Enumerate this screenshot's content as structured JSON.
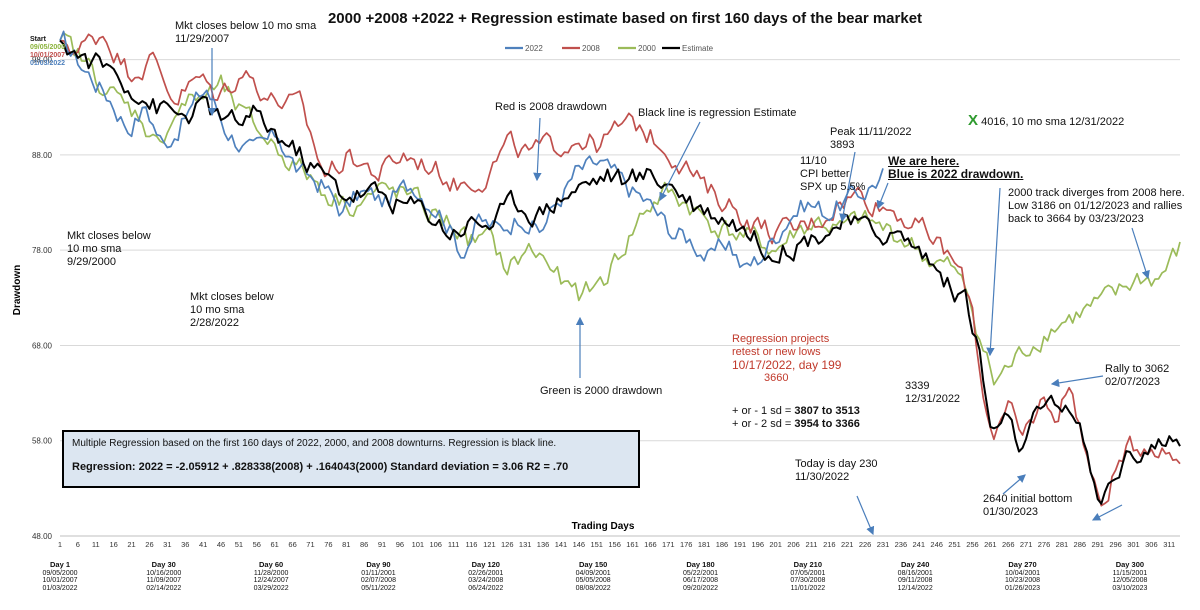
{
  "title": "2000 +2008 +2022 + Regression estimate based on first 160 days of the bear market",
  "start_label": {
    "heading": "Start",
    "dates": [
      {
        "text": "09/05/2000",
        "color": "#8bb33b"
      },
      {
        "text": "10/01/2007",
        "color": "#c0504d"
      },
      {
        "text": "01/03/2022",
        "color": "#4f81bd"
      }
    ]
  },
  "regression_box": {
    "line1": "Multiple Regression based on the first 160 days of 2022, 2000, and 2008 downturns. Regression is black line.",
    "line2": "Regression: 2022 = -2.05912 + .828338(2008) + .164043(2000)  Standard deviation = 3.06   R2 = .70"
  },
  "annotations": {
    "mkt_2007": [
      "Mkt closes below 10 mo sma",
      "11/29/2007"
    ],
    "mkt_2000": [
      "Mkt closes below",
      "10 mo sma",
      "9/29/2000"
    ],
    "mkt_2022": [
      "Mkt closes below",
      "10 mo sma",
      "2/28/2022"
    ],
    "red_is": "Red is 2008 drawdown",
    "black_is": "Black line is regression Estimate",
    "green_is": "Green is 2000 drawdown",
    "peak": [
      "Peak 11/11/2022",
      "3893"
    ],
    "cpi": [
      "11/10",
      "CPI better",
      "SPX up 5.5%"
    ],
    "we_are_here": [
      "We are here.",
      "Blue is 2022 drawdown."
    ],
    "x_mark": "X",
    "sma_note": "4016, 10 mo sma 12/31/2022",
    "diverge": [
      "2000 track diverges from 2008 here.",
      "Low 3186 on 01/12/2023 and rallies",
      "back to 3664 by 03/23/2023"
    ],
    "projects": [
      "Regression projects",
      "retest or new lows"
    ],
    "projects_date": "10/17/2022, day 199",
    "projects_val": "3660",
    "sd1_label": "+  or - 1 sd =",
    "sd1_val": "3807 to 3513",
    "sd2_label": "+  or - 2 sd =",
    "sd2_val": "3954 to 3366",
    "y3339": [
      "3339",
      "12/31/2022"
    ],
    "rally": [
      "Rally to  3062",
      "02/07/2023"
    ],
    "today": [
      "Today is day 230",
      "11/30/2022"
    ],
    "bottom": [
      "2640 initial bottom",
      "01/30/2023"
    ]
  },
  "day_labels": [
    {
      "day": "Day 1",
      "dates": [
        "09/05/2000",
        "10/01/2007",
        "01/03/2022"
      ]
    },
    {
      "day": "Day 30",
      "dates": [
        "10/16/2000",
        "11/09/2007",
        "02/14/2022"
      ]
    },
    {
      "day": "Day 60",
      "dates": [
        "11/28/2000",
        "12/24/2007",
        "03/29/2022"
      ]
    },
    {
      "day": "Day 90",
      "dates": [
        "01/11/2001",
        "02/07/2008",
        "05/11/2022"
      ]
    },
    {
      "day": "Day 120",
      "dates": [
        "02/26/2001",
        "03/24/2008",
        "06/24/2022"
      ]
    },
    {
      "day": "Day 150",
      "dates": [
        "04/09/2001",
        "05/05/2008",
        "08/08/2022"
      ]
    },
    {
      "day": "Day 180",
      "dates": [
        "05/22/2001",
        "06/17/2008",
        "09/20/2022"
      ]
    },
    {
      "day": "Day 210",
      "dates": [
        "07/05/2001",
        "07/30/2008",
        "11/01/2022"
      ]
    },
    {
      "day": "Day 240",
      "dates": [
        "08/16/2001",
        "09/11/2008",
        "12/14/2022"
      ]
    },
    {
      "day": "Day 270",
      "dates": [
        "10/04/2001",
        "10/23/2008",
        "01/26/2023"
      ]
    },
    {
      "day": "Day 300",
      "dates": [
        "11/15/2001",
        "12/05/2008",
        "03/10/2023"
      ]
    }
  ],
  "chart_data": {
    "type": "line",
    "title": "2000 +2008 +2022 + Regression estimate based on first 160 days of the bear market",
    "xlabel": "Trading Days",
    "ylabel": "Drawdown",
    "xlim": [
      1,
      314
    ],
    "ylim": [
      48,
      103
    ],
    "yticks": [
      "48.00",
      "58.00",
      "68.00",
      "78.00",
      "88.00",
      "98.00"
    ],
    "ytick_values": [
      48,
      58,
      68,
      78,
      88,
      98
    ],
    "xticks": [
      1,
      6,
      11,
      16,
      21,
      26,
      31,
      36,
      41,
      46,
      51,
      56,
      61,
      66,
      71,
      76,
      81,
      86,
      91,
      96,
      101,
      106,
      111,
      116,
      121,
      126,
      131,
      136,
      141,
      146,
      151,
      156,
      161,
      166,
      171,
      176,
      181,
      186,
      191,
      196,
      201,
      206,
      211,
      216,
      221,
      226,
      231,
      236,
      241,
      246,
      251,
      256,
      261,
      266,
      271,
      276,
      281,
      286,
      291,
      296,
      301,
      306,
      311
    ],
    "grid": "horizontal",
    "legend_position": "top",
    "series": [
      {
        "name": "2022",
        "color": "#4f81bd",
        "length": 231,
        "anchors": [
          [
            1,
            100
          ],
          [
            8,
            97
          ],
          [
            15,
            94
          ],
          [
            20,
            91
          ],
          [
            25,
            93
          ],
          [
            30,
            89
          ],
          [
            36,
            92
          ],
          [
            42,
            95
          ],
          [
            47,
            91
          ],
          [
            55,
            88
          ],
          [
            62,
            90
          ],
          [
            68,
            86
          ],
          [
            74,
            85
          ],
          [
            80,
            82
          ],
          [
            85,
            84
          ],
          [
            92,
            83
          ],
          [
            100,
            85
          ],
          [
            108,
            82
          ],
          [
            113,
            78
          ],
          [
            118,
            81
          ],
          [
            124,
            80
          ],
          [
            130,
            82
          ],
          [
            135,
            80
          ],
          [
            140,
            83
          ],
          [
            145,
            86
          ],
          [
            152,
            87
          ],
          [
            158,
            85
          ],
          [
            165,
            83
          ],
          [
            172,
            80
          ],
          [
            178,
            79
          ],
          [
            183,
            77
          ],
          [
            188,
            79
          ],
          [
            192,
            76
          ],
          [
            196,
            77
          ],
          [
            200,
            79
          ],
          [
            205,
            82
          ],
          [
            210,
            83
          ],
          [
            215,
            82
          ],
          [
            220,
            83
          ],
          [
            225,
            84
          ],
          [
            231,
            86
          ]
        ]
      },
      {
        "name": "2008",
        "color": "#c0504d",
        "length": 314,
        "anchors": [
          [
            1,
            100
          ],
          [
            6,
            99
          ],
          [
            13,
            101
          ],
          [
            20,
            97
          ],
          [
            27,
            98
          ],
          [
            33,
            94
          ],
          [
            40,
            96
          ],
          [
            45,
            94
          ],
          [
            52,
            97
          ],
          [
            60,
            94
          ],
          [
            68,
            93
          ],
          [
            75,
            86
          ],
          [
            82,
            88
          ],
          [
            90,
            86
          ],
          [
            97,
            88
          ],
          [
            104,
            87
          ],
          [
            112,
            85
          ],
          [
            120,
            86
          ],
          [
            126,
            89
          ],
          [
            132,
            88
          ],
          [
            140,
            89
          ],
          [
            146,
            90
          ],
          [
            152,
            89
          ],
          [
            158,
            91
          ],
          [
            163,
            91
          ],
          [
            170,
            89
          ],
          [
            176,
            87
          ],
          [
            182,
            84
          ],
          [
            188,
            83
          ],
          [
            194,
            81
          ],
          [
            200,
            80
          ],
          [
            206,
            80
          ],
          [
            212,
            81
          ],
          [
            218,
            83
          ],
          [
            224,
            84
          ],
          [
            230,
            83
          ],
          [
            236,
            82
          ],
          [
            242,
            80
          ],
          [
            248,
            78
          ],
          [
            252,
            76
          ],
          [
            256,
            72
          ],
          [
            259,
            63
          ],
          [
            262,
            59
          ],
          [
            266,
            61
          ],
          [
            270,
            58
          ],
          [
            275,
            62
          ],
          [
            280,
            61
          ],
          [
            283,
            64
          ],
          [
            286,
            60
          ],
          [
            290,
            53
          ],
          [
            292,
            51
          ],
          [
            296,
            55
          ],
          [
            300,
            57
          ],
          [
            305,
            58
          ],
          [
            310,
            57
          ],
          [
            314,
            56
          ]
        ]
      },
      {
        "name": "2000",
        "color": "#9bbb59",
        "length": 314,
        "anchors": [
          [
            1,
            100
          ],
          [
            7,
            98
          ],
          [
            14,
            95
          ],
          [
            19,
            93
          ],
          [
            24,
            92
          ],
          [
            28,
            89
          ],
          [
            34,
            93
          ],
          [
            40,
            94
          ],
          [
            46,
            95
          ],
          [
            52,
            92
          ],
          [
            58,
            90
          ],
          [
            64,
            88
          ],
          [
            70,
            86
          ],
          [
            76,
            84
          ],
          [
            82,
            83
          ],
          [
            90,
            84
          ],
          [
            97,
            84
          ],
          [
            104,
            82
          ],
          [
            110,
            81
          ],
          [
            115,
            79
          ],
          [
            121,
            79
          ],
          [
            126,
            76
          ],
          [
            132,
            78
          ],
          [
            137,
            77
          ],
          [
            142,
            74
          ],
          [
            147,
            73
          ],
          [
            153,
            75
          ],
          [
            158,
            78
          ],
          [
            164,
            82
          ],
          [
            170,
            84
          ],
          [
            176,
            83
          ],
          [
            182,
            81
          ],
          [
            188,
            80
          ],
          [
            195,
            79
          ],
          [
            201,
            78
          ],
          [
            207,
            80
          ],
          [
            213,
            81
          ],
          [
            219,
            80
          ],
          [
            225,
            81
          ],
          [
            232,
            80
          ],
          [
            238,
            79
          ],
          [
            244,
            77
          ],
          [
            250,
            76
          ],
          [
            255,
            73
          ],
          [
            259,
            68
          ],
          [
            262,
            64
          ],
          [
            267,
            66
          ],
          [
            272,
            68
          ],
          [
            278,
            70
          ],
          [
            284,
            71
          ],
          [
            290,
            72
          ],
          [
            296,
            73
          ],
          [
            302,
            75
          ],
          [
            308,
            75
          ],
          [
            314,
            78
          ]
        ]
      },
      {
        "name": "Estimate",
        "color": "#000000",
        "length": 314,
        "anchors": [
          [
            1,
            100
          ],
          [
            8,
            98
          ],
          [
            15,
            97
          ],
          [
            22,
            95
          ],
          [
            28,
            93
          ],
          [
            35,
            92
          ],
          [
            42,
            93
          ],
          [
            48,
            91
          ],
          [
            55,
            92
          ],
          [
            62,
            90
          ],
          [
            68,
            88
          ],
          [
            74,
            86
          ],
          [
            80,
            84
          ],
          [
            88,
            84
          ],
          [
            96,
            83
          ],
          [
            104,
            82
          ],
          [
            110,
            80
          ],
          [
            116,
            81
          ],
          [
            122,
            81
          ],
          [
            128,
            83
          ],
          [
            135,
            82
          ],
          [
            142,
            84
          ],
          [
            148,
            85
          ],
          [
            154,
            86
          ],
          [
            160,
            85
          ],
          [
            166,
            86
          ],
          [
            172,
            85
          ],
          [
            178,
            83
          ],
          [
            184,
            82
          ],
          [
            190,
            81
          ],
          [
            196,
            79
          ],
          [
            202,
            78
          ],
          [
            208,
            79
          ],
          [
            214,
            80
          ],
          [
            220,
            81
          ],
          [
            226,
            80
          ],
          [
            232,
            80
          ],
          [
            238,
            79
          ],
          [
            244,
            77
          ],
          [
            250,
            74
          ],
          [
            254,
            73
          ],
          [
            258,
            67
          ],
          [
            261,
            59
          ],
          [
            265,
            60
          ],
          [
            270,
            57
          ],
          [
            275,
            61
          ],
          [
            280,
            61
          ],
          [
            283,
            62
          ],
          [
            287,
            58
          ],
          [
            291,
            51
          ],
          [
            294,
            53
          ],
          [
            298,
            56
          ],
          [
            303,
            57
          ],
          [
            308,
            58
          ],
          [
            314,
            57
          ]
        ]
      }
    ]
  }
}
